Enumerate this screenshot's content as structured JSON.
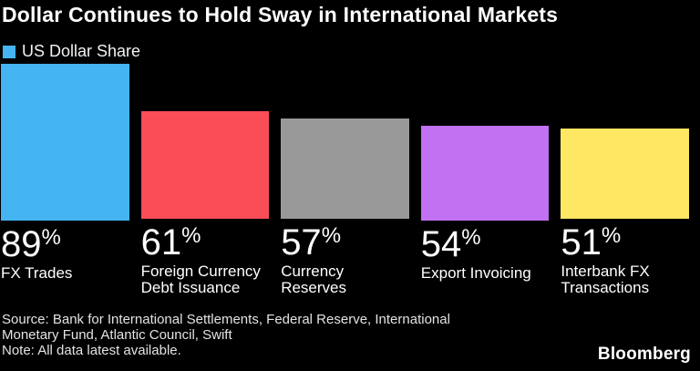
{
  "title": "Dollar Continues to Hold Sway in International Markets",
  "legend": {
    "label": "US Dollar Share"
  },
  "chart_data": {
    "type": "bar",
    "title": "Dollar Continues to Hold Sway in International Markets",
    "legend": [
      "US Dollar Share"
    ],
    "legend_position": "top-left",
    "categories": [
      "FX Trades",
      "Foreign Currency Debt Issuance",
      "Currency Reserves",
      "Export Invoicing",
      "Interbank FX Transactions"
    ],
    "category_label_lines": [
      [
        "FX Trades"
      ],
      [
        "Foreign Currency",
        "Debt Issuance"
      ],
      [
        "Currency",
        "Reserves"
      ],
      [
        "Export Invoicing"
      ],
      [
        "Interbank FX",
        "Transactions"
      ]
    ],
    "values": [
      89,
      61,
      57,
      54,
      51
    ],
    "value_labels": [
      "89%",
      "61%",
      "57%",
      "54%",
      "51%"
    ],
    "unit": "%",
    "ylim": [
      0,
      100
    ],
    "grid": false,
    "bar_colors": [
      "#45b4f2",
      "#fb4d57",
      "#999999",
      "#c171f2",
      "#fde763"
    ]
  },
  "footer": {
    "source_lines": [
      "Source: Bank for International Settlements, Federal Reserve, International",
      "Monetary Fund, Atlantic Council, Swift"
    ],
    "note": "Note: All data latest available.",
    "brand": "Bloomberg"
  },
  "colors": {
    "background": "#000000",
    "title_text": "#ffffff",
    "label_text": "#ffffff",
    "footer_text": "#e3e3e3"
  }
}
